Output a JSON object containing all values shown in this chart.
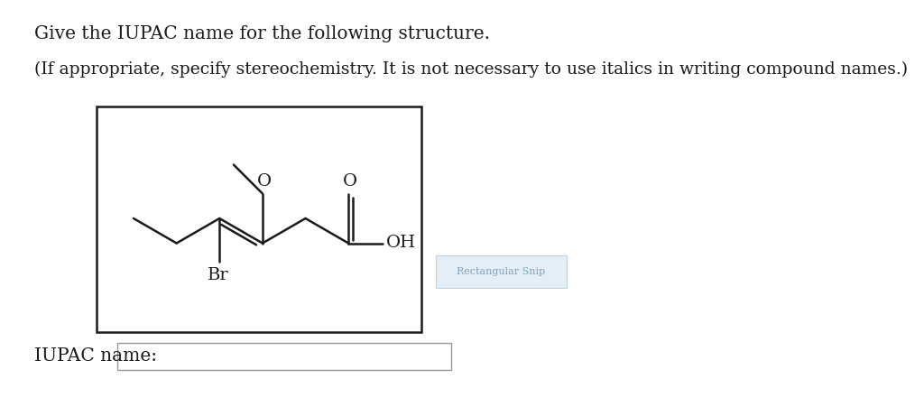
{
  "title_line1": "Give the IUPAC name for the following structure.",
  "title_line2": "(If appropriate, specify stereochemistry. It is not necessary to use italics in writing compound names.)",
  "iupac_label": "IUPAC name:",
  "bg_color": "#ffffff",
  "text_color": "#1a1a1a",
  "line_color": "#1a1a1a",
  "font_size_title": 14.5,
  "font_size_label": 14.5,
  "fig_width": 10.24,
  "fig_height": 4.51
}
